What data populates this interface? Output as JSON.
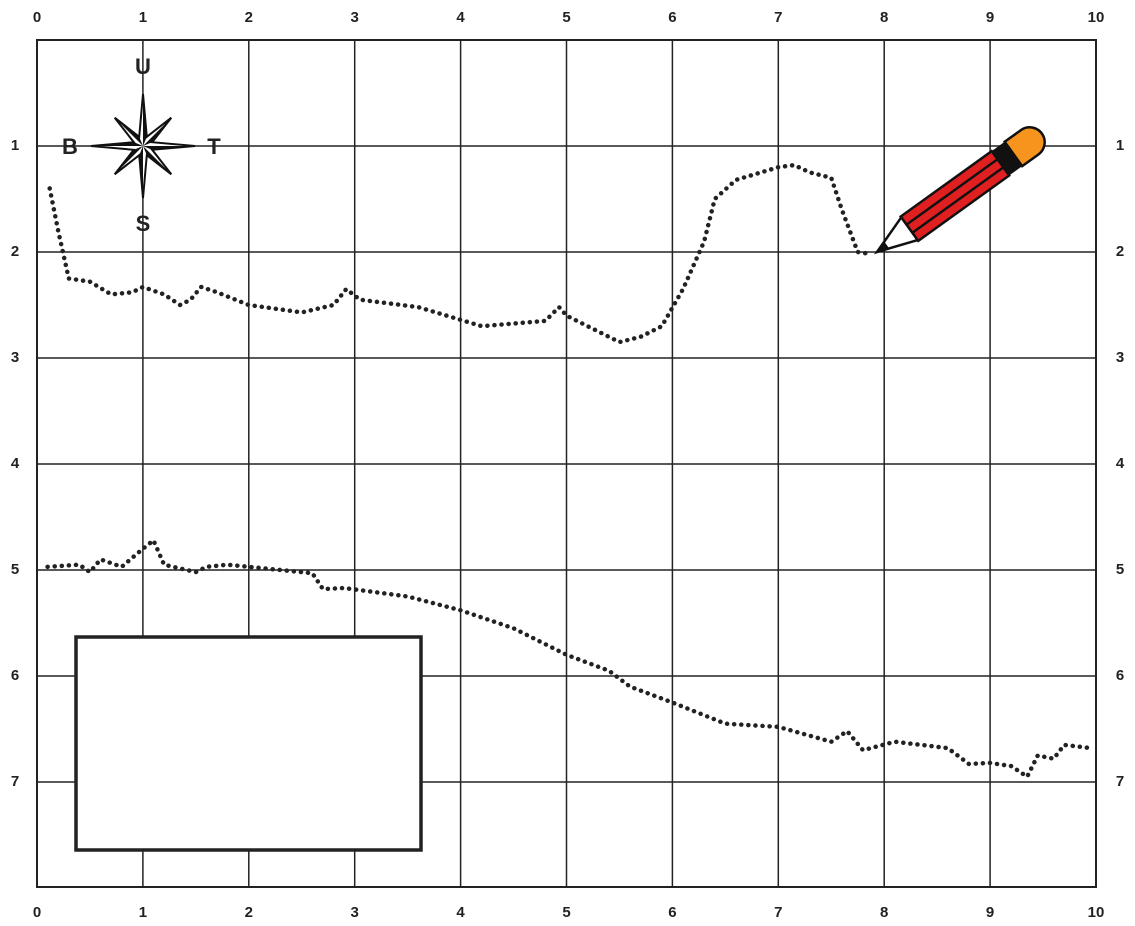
{
  "top_labels": [
    "0",
    "1",
    "2",
    "3",
    "4",
    "5",
    "6",
    "7",
    "8",
    "9",
    "10"
  ],
  "bottom_labels": [
    "0",
    "1",
    "2",
    "3",
    "4",
    "5",
    "6",
    "7",
    "8",
    "9",
    "10"
  ],
  "left_labels": [
    "1",
    "2",
    "3",
    "4",
    "5",
    "6",
    "7"
  ],
  "right_labels": [
    "1",
    "2",
    "3",
    "4",
    "5",
    "6",
    "7"
  ],
  "compass": {
    "north": "U",
    "west": "B",
    "east": "T",
    "south": "S"
  }
}
